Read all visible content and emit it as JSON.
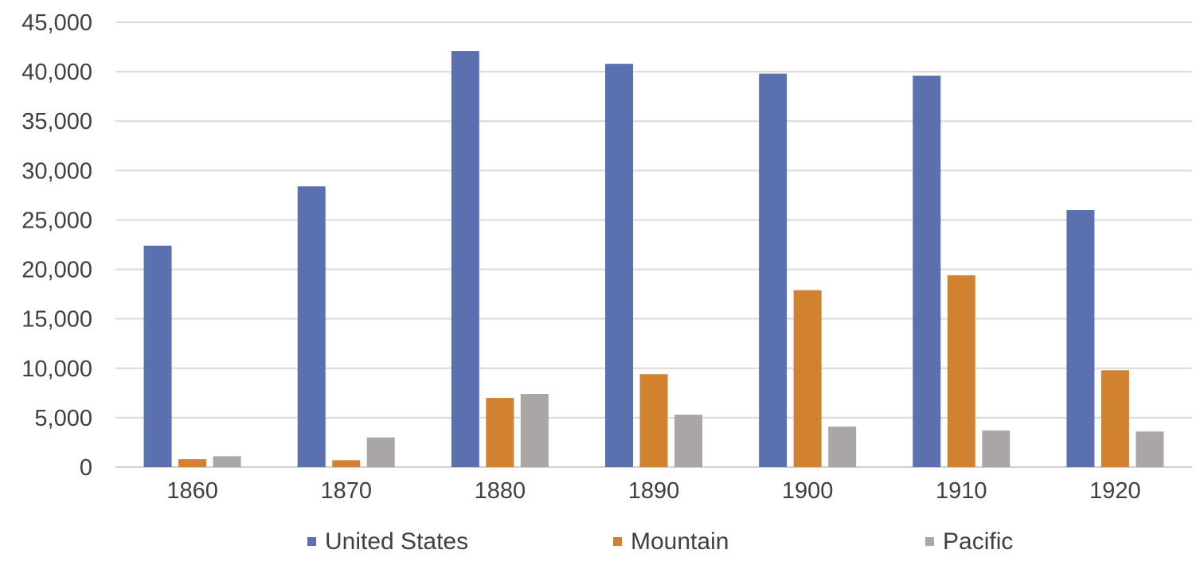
{
  "chart_data": {
    "type": "bar",
    "title": "",
    "xlabel": "",
    "ylabel": "",
    "categories": [
      "1860",
      "1870",
      "1880",
      "1890",
      "1900",
      "1910",
      "1920"
    ],
    "series": [
      {
        "name": "United States",
        "color": "#5b70af",
        "values": [
          22400,
          28400,
          42100,
          40800,
          39800,
          39600,
          26000
        ]
      },
      {
        "name": "Mountain",
        "color": "#d08230",
        "values": [
          800,
          700,
          7000,
          9400,
          17900,
          19400,
          9800
        ]
      },
      {
        "name": "Pacific",
        "color": "#aaa6a5",
        "values": [
          1100,
          3000,
          7400,
          5300,
          4100,
          3700,
          3600
        ]
      }
    ],
    "ylim": [
      0,
      45000
    ],
    "yticks": [
      0,
      5000,
      10000,
      15000,
      20000,
      25000,
      30000,
      35000,
      40000,
      45000
    ],
    "ytick_labels": [
      "0",
      "5,000",
      "10,000",
      "15,000",
      "20,000",
      "25,000",
      "30,000",
      "35,000",
      "40,000",
      "45,000"
    ],
    "grid": true,
    "legend_position": "bottom-center"
  }
}
